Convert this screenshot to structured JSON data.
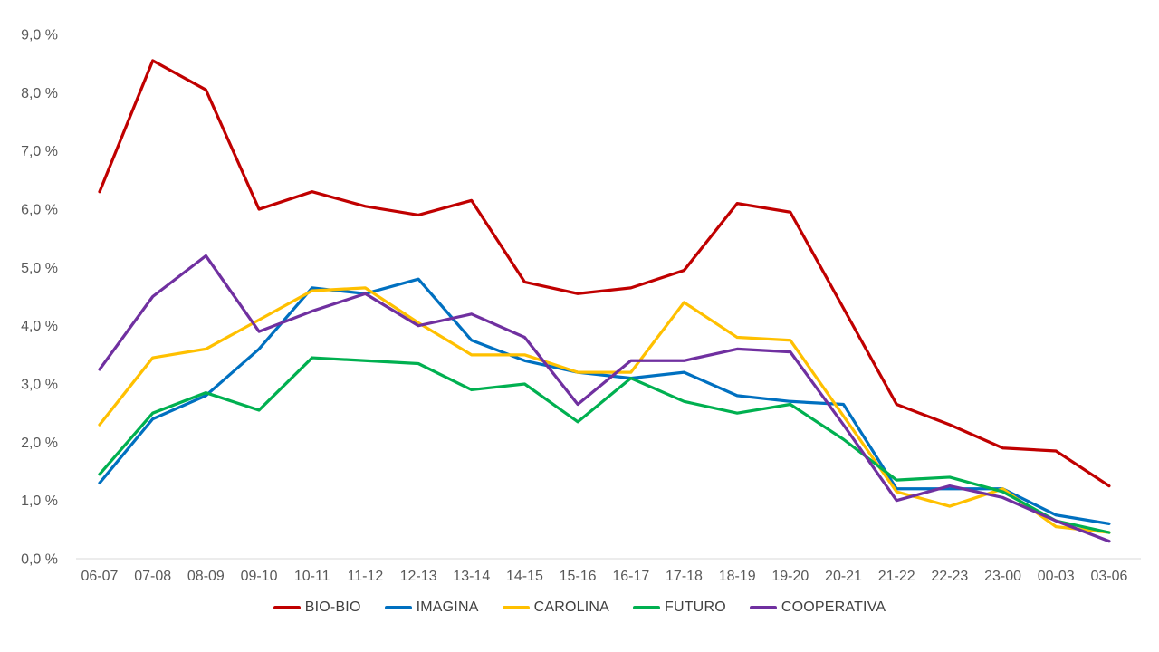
{
  "chart_data": {
    "type": "line",
    "title": "",
    "xlabel": "",
    "ylabel": "",
    "grid": "off",
    "legend_position": "bottom-center",
    "background_color": "#FFFFFF",
    "axis_label_color": "#595959",
    "baseline_color": "#D9D9D9",
    "categories": [
      "06-07",
      "07-08",
      "08-09",
      "09-10",
      "10-11",
      "11-12",
      "12-13",
      "13-14",
      "14-15",
      "15-16",
      "16-17",
      "17-18",
      "18-19",
      "19-20",
      "20-21",
      "21-22",
      "22-23",
      "23-00",
      "00-03",
      "03-06"
    ],
    "y_axis": {
      "min": 0,
      "max": 9,
      "step": 1,
      "tick_labels": [
        "0,0 %",
        "1,0 %",
        "2,0 %",
        "3,0 %",
        "4,0 %",
        "5,0 %",
        "6,0 %",
        "7,0 %",
        "8,0 %",
        "9,0 %"
      ]
    },
    "series": [
      {
        "name": "BIO-BIO",
        "color": "#C00000",
        "values": [
          6.3,
          8.55,
          8.05,
          6.0,
          6.3,
          6.05,
          5.9,
          6.15,
          4.75,
          4.55,
          4.65,
          4.95,
          6.1,
          5.95,
          4.3,
          2.65,
          2.3,
          1.9,
          1.85,
          1.25
        ]
      },
      {
        "name": "IMAGINA",
        "color": "#0070C0",
        "values": [
          1.3,
          2.4,
          2.8,
          3.6,
          4.65,
          4.55,
          4.8,
          3.75,
          3.4,
          3.2,
          3.1,
          3.2,
          2.8,
          2.7,
          2.65,
          1.2,
          1.2,
          1.2,
          0.75,
          0.6
        ]
      },
      {
        "name": "CAROLINA",
        "color": "#FFC000",
        "values": [
          2.3,
          3.45,
          3.6,
          4.1,
          4.6,
          4.65,
          4.05,
          3.5,
          3.5,
          3.2,
          3.2,
          4.4,
          3.8,
          3.75,
          2.45,
          1.15,
          0.9,
          1.2,
          0.55,
          0.45
        ]
      },
      {
        "name": "FUTURO",
        "color": "#00B050",
        "values": [
          1.45,
          2.5,
          2.85,
          2.55,
          3.45,
          3.4,
          3.35,
          2.9,
          3.0,
          2.35,
          3.1,
          2.7,
          2.5,
          2.65,
          2.05,
          1.35,
          1.4,
          1.15,
          0.65,
          0.45
        ]
      },
      {
        "name": "COOPERATIVA",
        "color": "#7030A0",
        "values": [
          3.25,
          4.5,
          5.2,
          3.9,
          4.25,
          4.55,
          4.0,
          4.2,
          3.8,
          2.65,
          3.4,
          3.4,
          3.6,
          3.55,
          2.3,
          1.0,
          1.25,
          1.05,
          0.65,
          0.3
        ]
      }
    ]
  }
}
